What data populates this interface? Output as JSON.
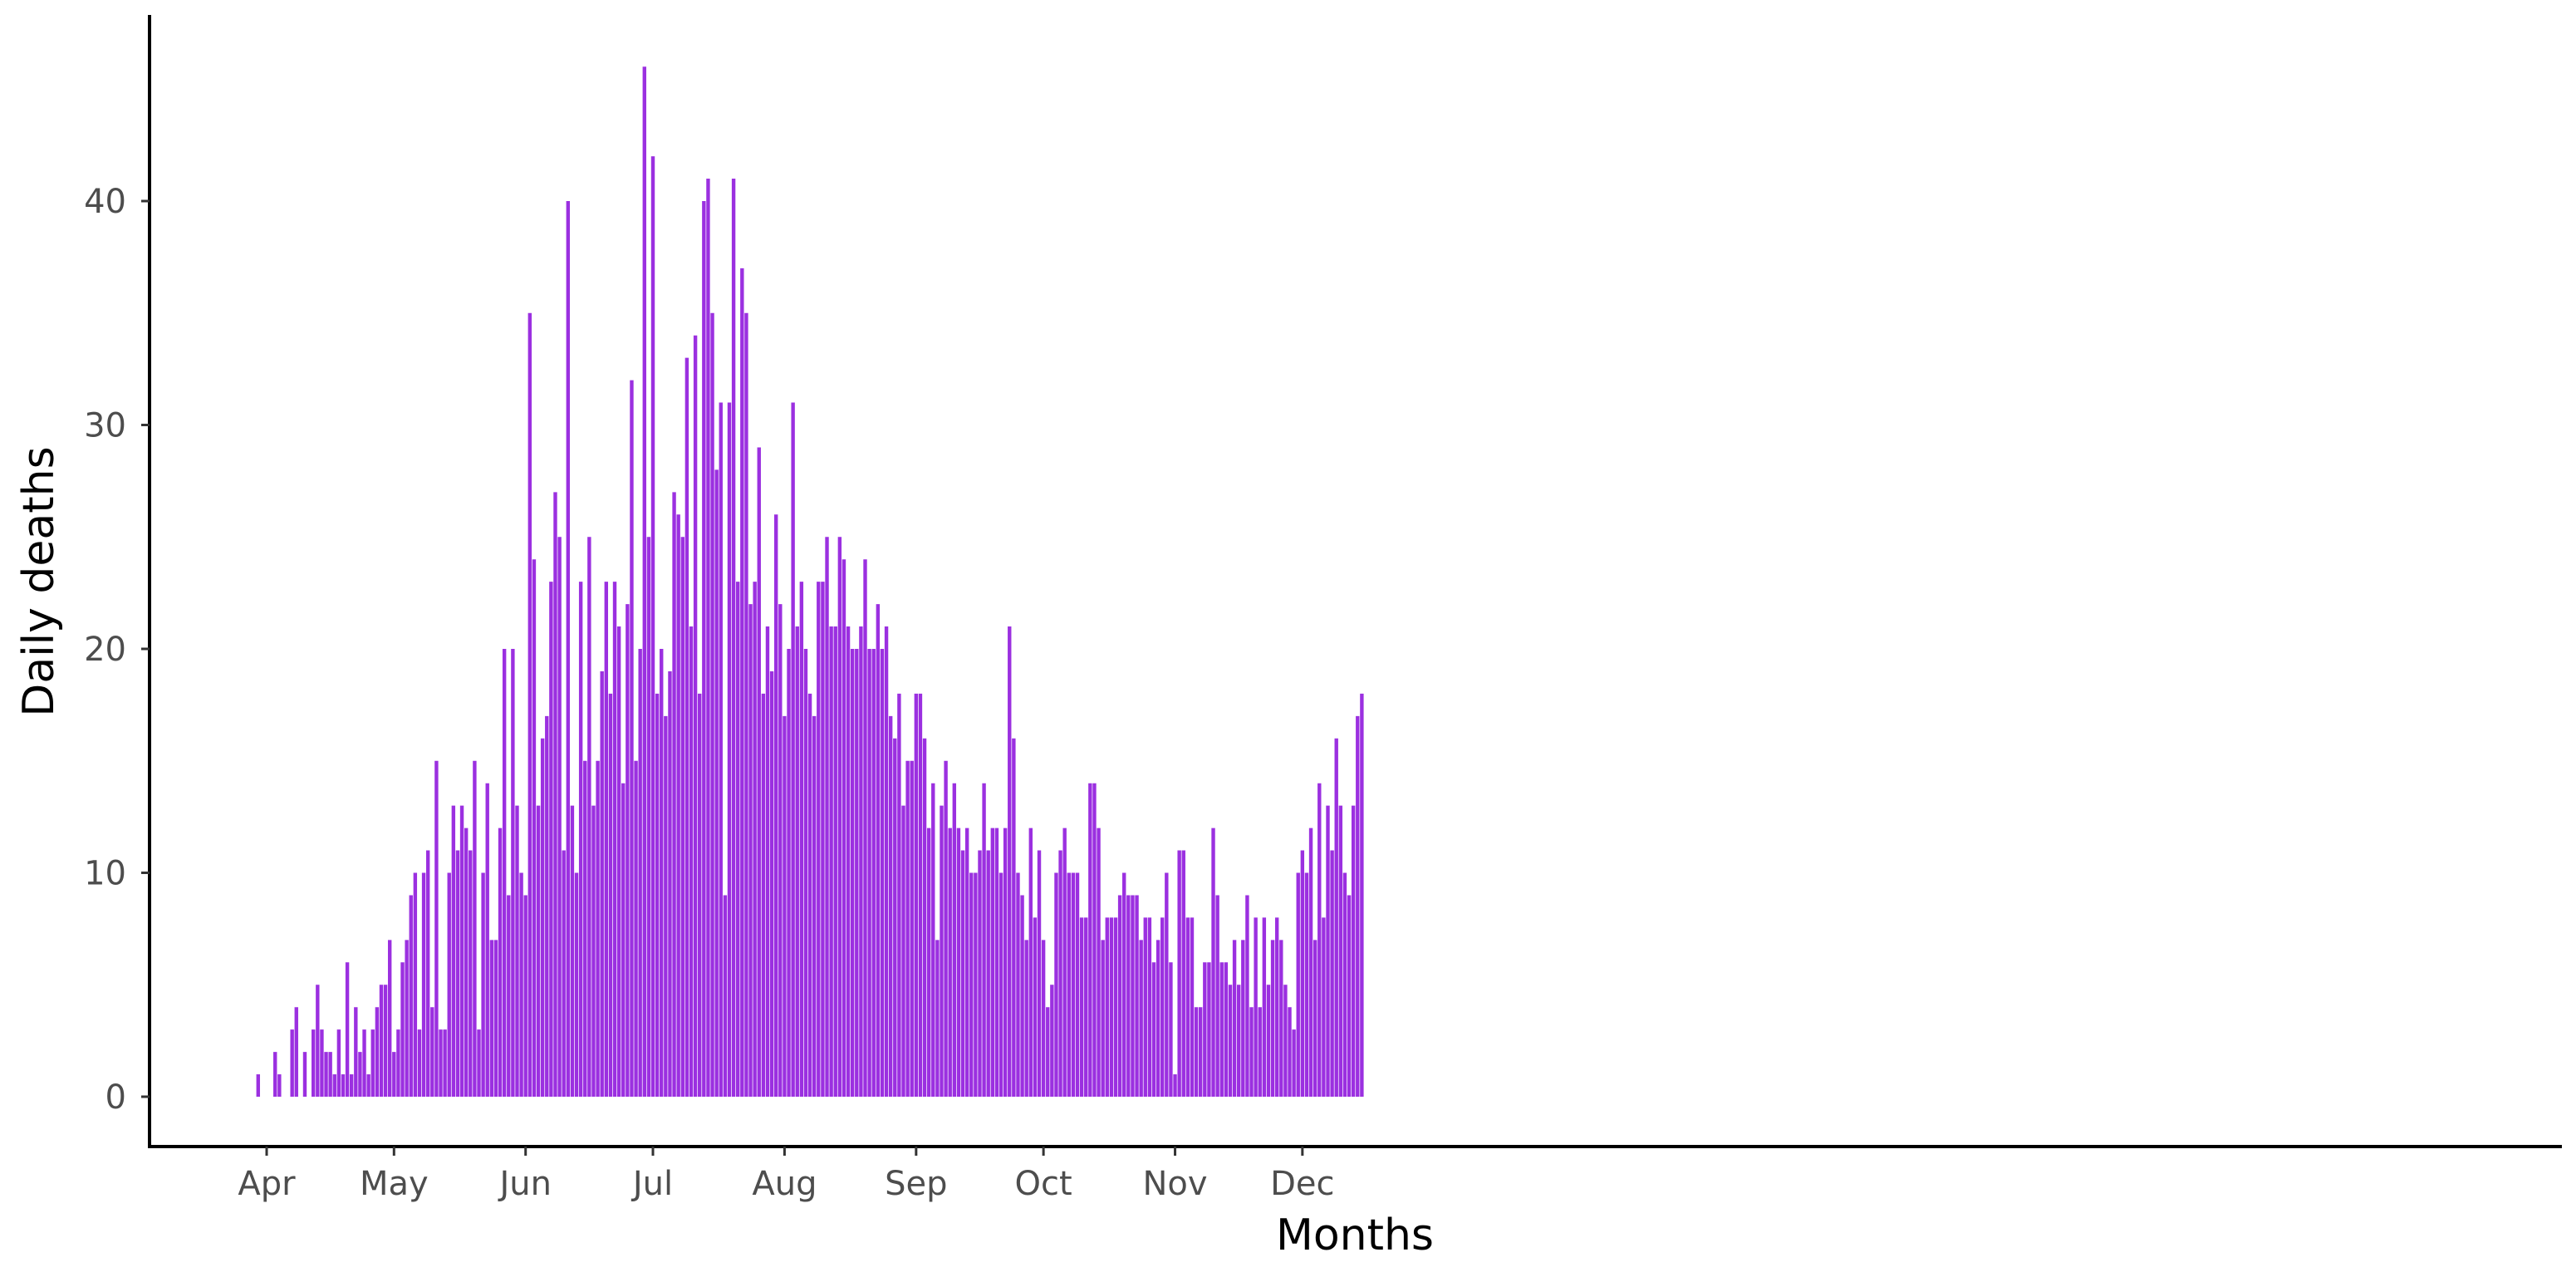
{
  "chart_data": {
    "type": "bar",
    "title": "",
    "xlabel": "Months",
    "ylabel": "Daily deaths",
    "x_axis_type": "date",
    "x_tick_labels": [
      "Apr",
      "May",
      "Jun",
      "Jul",
      "Aug",
      "Sep",
      "Oct",
      "Nov",
      "Dec"
    ],
    "y_ticks": [
      0,
      10,
      20,
      30,
      40
    ],
    "ylim": [
      0,
      47
    ],
    "grid": false,
    "legend": "none",
    "bar_color": "#9b30e0",
    "x": [
      "2020-03-30",
      "2020-03-31",
      "2020-04-01",
      "2020-04-02",
      "2020-04-03",
      "2020-04-04",
      "2020-04-05",
      "2020-04-06",
      "2020-04-07",
      "2020-04-08",
      "2020-04-09",
      "2020-04-10",
      "2020-04-11",
      "2020-04-12",
      "2020-04-13",
      "2020-04-14",
      "2020-04-15",
      "2020-04-16",
      "2020-04-17",
      "2020-04-18",
      "2020-04-19",
      "2020-04-20",
      "2020-04-21",
      "2020-04-22",
      "2020-04-23",
      "2020-04-24",
      "2020-04-25",
      "2020-04-26",
      "2020-04-27",
      "2020-04-28",
      "2020-04-29",
      "2020-04-30",
      "2020-05-01",
      "2020-05-02",
      "2020-05-03",
      "2020-05-04",
      "2020-05-05",
      "2020-05-06",
      "2020-05-07",
      "2020-05-08",
      "2020-05-09",
      "2020-05-10",
      "2020-05-11",
      "2020-05-12",
      "2020-05-13",
      "2020-05-14",
      "2020-05-15",
      "2020-05-16",
      "2020-05-17",
      "2020-05-18",
      "2020-05-19",
      "2020-05-20",
      "2020-05-21",
      "2020-05-22",
      "2020-05-23",
      "2020-05-24",
      "2020-05-25",
      "2020-05-26",
      "2020-05-27",
      "2020-05-28",
      "2020-05-29",
      "2020-05-30",
      "2020-05-31",
      "2020-06-01",
      "2020-06-02",
      "2020-06-03",
      "2020-06-04",
      "2020-06-05",
      "2020-06-06",
      "2020-06-07",
      "2020-06-08",
      "2020-06-09",
      "2020-06-10",
      "2020-06-11",
      "2020-06-12",
      "2020-06-13",
      "2020-06-14",
      "2020-06-15",
      "2020-06-16",
      "2020-06-17",
      "2020-06-18",
      "2020-06-19",
      "2020-06-20",
      "2020-06-21",
      "2020-06-22",
      "2020-06-23",
      "2020-06-24",
      "2020-06-25",
      "2020-06-26",
      "2020-06-27",
      "2020-06-28",
      "2020-06-29",
      "2020-06-30",
      "2020-07-01",
      "2020-07-02",
      "2020-07-03",
      "2020-07-04",
      "2020-07-05",
      "2020-07-06",
      "2020-07-07",
      "2020-07-08",
      "2020-07-09",
      "2020-07-10",
      "2020-07-11",
      "2020-07-12",
      "2020-07-13",
      "2020-07-14",
      "2020-07-15",
      "2020-07-16",
      "2020-07-17",
      "2020-07-18",
      "2020-07-19",
      "2020-07-20",
      "2020-07-21",
      "2020-07-22",
      "2020-07-23",
      "2020-07-24",
      "2020-07-25",
      "2020-07-26",
      "2020-07-27",
      "2020-07-28",
      "2020-07-29",
      "2020-07-30",
      "2020-07-31",
      "2020-08-01",
      "2020-08-02",
      "2020-08-03",
      "2020-08-04",
      "2020-08-05",
      "2020-08-06",
      "2020-08-07",
      "2020-08-08",
      "2020-08-09",
      "2020-08-10",
      "2020-08-11",
      "2020-08-12",
      "2020-08-13",
      "2020-08-14",
      "2020-08-15",
      "2020-08-16",
      "2020-08-17",
      "2020-08-18",
      "2020-08-19",
      "2020-08-20",
      "2020-08-21",
      "2020-08-22",
      "2020-08-23",
      "2020-08-24",
      "2020-08-25",
      "2020-08-26",
      "2020-08-27",
      "2020-08-28",
      "2020-08-29",
      "2020-08-30",
      "2020-08-31",
      "2020-09-01",
      "2020-09-02",
      "2020-09-03",
      "2020-09-04",
      "2020-09-05",
      "2020-09-06",
      "2020-09-07",
      "2020-09-08",
      "2020-09-09",
      "2020-09-10",
      "2020-09-11",
      "2020-09-12",
      "2020-09-13",
      "2020-09-14",
      "2020-09-15",
      "2020-09-16",
      "2020-09-17",
      "2020-09-18",
      "2020-09-19",
      "2020-09-20",
      "2020-09-21",
      "2020-09-22",
      "2020-09-23",
      "2020-09-24",
      "2020-09-25",
      "2020-09-26",
      "2020-09-27",
      "2020-09-28",
      "2020-09-29",
      "2020-09-30",
      "2020-10-01",
      "2020-10-02",
      "2020-10-03",
      "2020-10-04",
      "2020-10-05",
      "2020-10-06",
      "2020-10-07",
      "2020-10-08",
      "2020-10-09",
      "2020-10-10",
      "2020-10-11",
      "2020-10-12",
      "2020-10-13",
      "2020-10-14",
      "2020-10-15",
      "2020-10-16",
      "2020-10-17",
      "2020-10-18",
      "2020-10-19",
      "2020-10-20",
      "2020-10-21",
      "2020-10-22",
      "2020-10-23",
      "2020-10-24",
      "2020-10-25",
      "2020-10-26",
      "2020-10-27",
      "2020-10-28",
      "2020-10-29",
      "2020-10-30",
      "2020-10-31",
      "2020-11-01",
      "2020-11-02",
      "2020-11-03",
      "2020-11-04",
      "2020-11-05",
      "2020-11-06",
      "2020-11-07",
      "2020-11-08",
      "2020-11-09",
      "2020-11-10",
      "2020-11-11",
      "2020-11-12",
      "2020-11-13",
      "2020-11-14",
      "2020-11-15",
      "2020-11-16",
      "2020-11-17",
      "2020-11-18",
      "2020-11-19",
      "2020-11-20",
      "2020-11-21",
      "2020-11-22",
      "2020-11-23",
      "2020-11-24",
      "2020-11-25",
      "2020-11-26",
      "2020-11-27",
      "2020-11-28",
      "2020-11-29",
      "2020-11-30",
      "2020-12-01",
      "2020-12-02",
      "2020-12-03",
      "2020-12-04",
      "2020-12-05",
      "2020-12-06",
      "2020-12-07",
      "2020-12-08",
      "2020-12-09",
      "2020-12-10",
      "2020-12-11",
      "2020-12-12",
      "2020-12-13",
      "2020-12-14",
      "2020-12-15",
      "2020-12-16",
      "2020-12-17",
      "2020-12-18"
    ],
    "values": [
      1,
      0,
      0,
      0,
      2,
      1,
      0,
      0,
      3,
      4,
      0,
      2,
      0,
      3,
      5,
      3,
      2,
      2,
      1,
      3,
      1,
      6,
      1,
      4,
      2,
      3,
      1,
      3,
      4,
      5,
      5,
      7,
      2,
      3,
      6,
      7,
      9,
      10,
      3,
      10,
      11,
      4,
      15,
      3,
      3,
      10,
      13,
      11,
      13,
      12,
      11,
      15,
      3,
      10,
      14,
      7,
      7,
      12,
      20,
      9,
      20,
      13,
      10,
      9,
      35,
      24,
      13,
      16,
      17,
      23,
      27,
      25,
      11,
      40,
      13,
      10,
      23,
      15,
      25,
      13,
      15,
      19,
      23,
      18,
      23,
      21,
      14,
      22,
      32,
      15,
      20,
      46,
      25,
      42,
      18,
      20,
      17,
      19,
      27,
      26,
      25,
      33,
      21,
      34,
      18,
      40,
      41,
      35,
      28,
      31,
      9,
      31,
      41,
      23,
      37,
      35,
      22,
      23,
      29,
      18,
      21,
      19,
      26,
      22,
      17,
      20,
      31,
      21,
      23,
      20,
      18,
      17,
      23,
      23,
      25,
      21,
      21,
      25,
      24,
      21,
      20,
      20,
      21,
      24,
      20,
      20,
      22,
      20,
      21,
      17,
      16,
      18,
      13,
      15,
      15,
      18,
      18,
      16,
      12,
      14,
      7,
      13,
      15,
      12,
      14,
      12,
      11,
      12,
      10,
      10,
      11,
      14,
      11,
      12,
      12,
      10,
      12,
      21,
      16,
      10,
      9,
      7,
      12,
      8,
      11,
      7,
      4,
      5,
      10,
      11,
      12,
      10,
      10,
      10,
      8,
      8,
      14,
      14,
      12,
      7,
      8,
      8,
      8,
      9,
      10,
      9,
      9,
      9,
      7,
      8,
      8,
      6,
      7,
      8,
      10,
      6,
      1,
      11,
      11,
      8,
      8,
      4,
      4,
      6,
      6,
      12,
      9,
      6,
      6,
      5,
      7,
      5,
      7,
      9,
      4,
      8,
      4,
      8,
      5,
      7,
      8,
      7,
      5,
      4,
      3,
      10,
      11,
      10,
      12,
      7,
      14,
      8,
      13,
      11,
      16,
      13,
      10,
      9,
      13,
      17,
      18,
      0,
      0,
      0
    ]
  }
}
